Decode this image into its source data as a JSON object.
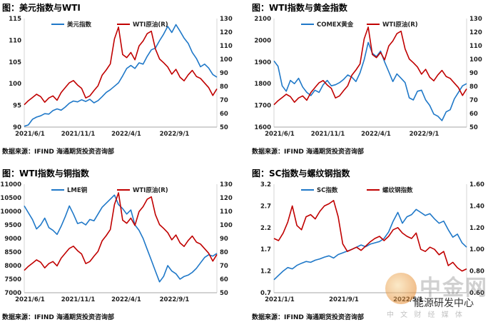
{
  "charts": [
    {
      "title": "图：美元指数与WTI",
      "source": "数据来源：IFIND   海通期货投资咨询部",
      "chart_data": {
        "type": "line",
        "x_ticks": [
          "2021/6/1",
          "2021/11/1",
          "2022/4/1",
          "2022/9/1"
        ],
        "left_axis": {
          "min": 90,
          "max": 115,
          "ticks": [
            90,
            95,
            100,
            105,
            110,
            115
          ]
        },
        "right_axis": {
          "min": 50,
          "max": 130,
          "ticks": [
            50,
            60,
            70,
            80,
            90,
            100,
            110,
            120,
            130
          ]
        },
        "series": [
          {
            "name": "美元指数",
            "axis": "left",
            "color": "#1f78c8",
            "values": [
              90.2,
              90.5,
              91.8,
              92.3,
              92.6,
              93.1,
              93.0,
              93.8,
              94.2,
              93.9,
              94.6,
              95.5,
              96.0,
              95.8,
              96.3,
              95.9,
              96.4,
              95.6,
              96.1,
              97.0,
              98.0,
              98.6,
              99.4,
              100.2,
              101.8,
              103.5,
              104.2,
              103.5,
              104.8,
              104.5,
              106.3,
              107.8,
              108.2,
              109.9,
              111.4,
              113.2,
              111.8,
              113.6,
              112.1,
              110.5,
              109.3,
              107.2,
              105.8,
              103.9,
              104.5,
              103.6,
              102.1,
              101.5
            ]
          },
          {
            "name": "WTI原油(R)",
            "axis": "right",
            "color": "#c00000",
            "values": [
              66.5,
              69.4,
              71.8,
              74.2,
              72.5,
              68.3,
              71.5,
              73.0,
              69.8,
              75.5,
              79.1,
              82.7,
              84.3,
              81.0,
              78.5,
              71.5,
              73.0,
              76.9,
              80.5,
              88.2,
              92.1,
              96.5,
              115.0,
              123.7,
              103.5,
              101.2,
              105.0,
              99.6,
              109.8,
              113.5,
              118.9,
              120.7,
              107.6,
              100.2,
              97.5,
              94.3,
              89.0,
              92.6,
              86.8,
              84.1,
              88.5,
              91.8,
              87.3,
              85.9,
              82.5,
              79.1,
              73.3,
              78.2
            ]
          }
        ]
      }
    },
    {
      "title": "图：WTI指数与黄金指数",
      "source": "数据来源：IFIND   海通期货投资咨询部",
      "chart_data": {
        "type": "line",
        "x_ticks": [
          "2021/6/1",
          "2021/11/1",
          "2022/4/1",
          "2022/9/1"
        ],
        "left_axis": {
          "min": 1600,
          "max": 2100,
          "ticks": [
            1600,
            1700,
            1800,
            1900,
            2000,
            2100
          ]
        },
        "right_axis": {
          "min": 50,
          "max": 130,
          "ticks": [
            50,
            60,
            70,
            80,
            90,
            100,
            110,
            120,
            130
          ]
        },
        "series": [
          {
            "name": "COMEX黄金",
            "axis": "left",
            "color": "#1f78c8",
            "values": [
              1905,
              1880,
              1790,
              1765,
              1815,
              1800,
              1825,
              1785,
              1760,
              1745,
              1770,
              1760,
              1795,
              1815,
              1790,
              1795,
              1805,
              1820,
              1840,
              1830,
              1810,
              1850,
              1910,
              1990,
              1940,
              1925,
              1950,
              1900,
              1855,
              1810,
              1845,
              1825,
              1805,
              1735,
              1725,
              1765,
              1770,
              1725,
              1700,
              1660,
              1650,
              1630,
              1670,
              1680,
              1730,
              1760,
              1790,
              1800
            ]
          },
          {
            "name": "WTI原油(R)",
            "axis": "right",
            "color": "#c00000",
            "values": [
              66.5,
              69.4,
              71.8,
              74.2,
              72.5,
              68.3,
              71.5,
              73.0,
              69.8,
              75.5,
              79.1,
              82.7,
              84.3,
              81.0,
              78.5,
              71.5,
              73.0,
              76.9,
              80.5,
              88.2,
              92.1,
              96.5,
              115.0,
              123.7,
              103.5,
              101.2,
              105.0,
              99.6,
              109.8,
              113.5,
              118.9,
              120.7,
              107.6,
              100.2,
              97.5,
              94.3,
              89.0,
              92.6,
              86.8,
              84.1,
              88.5,
              91.8,
              87.3,
              85.9,
              82.5,
              79.1,
              73.3,
              78.2
            ]
          }
        ]
      }
    },
    {
      "title": "图：WTI指数与铜指数",
      "source": "数据来源：IFIND   海通期货投资咨询部",
      "chart_data": {
        "type": "line",
        "x_ticks": [
          "2021/6/1",
          "2021/11/1",
          "2022/4/1",
          "2022/9/1"
        ],
        "left_axis": {
          "min": 7000,
          "max": 11000,
          "ticks": [
            7000,
            7500,
            8000,
            8500,
            9000,
            9500,
            10000,
            10500,
            11000
          ]
        },
        "right_axis": {
          "min": 50,
          "max": 130,
          "ticks": [
            50,
            60,
            70,
            80,
            90,
            100,
            110,
            120,
            130
          ]
        },
        "series": [
          {
            "name": "LME铜",
            "axis": "left",
            "color": "#1f78c8",
            "values": [
              10200,
              9950,
              9700,
              9350,
              9500,
              9750,
              9400,
              9300,
              9150,
              9450,
              9800,
              10200,
              9900,
              9550,
              9600,
              9500,
              9700,
              9650,
              9900,
              10150,
              10300,
              10450,
              10600,
              10250,
              10100,
              9900,
              10050,
              9500,
              9300,
              9000,
              8600,
              8200,
              7800,
              7400,
              7600,
              8000,
              7800,
              7700,
              7500,
              7600,
              7650,
              7750,
              7900,
              8100,
              8300,
              8400,
              8350,
              8450
            ]
          },
          {
            "name": "WTI原油(R)",
            "axis": "right",
            "color": "#c00000",
            "values": [
              66.5,
              69.4,
              71.8,
              74.2,
              72.5,
              68.3,
              71.5,
              73.0,
              69.8,
              75.5,
              79.1,
              82.7,
              84.3,
              81.0,
              78.5,
              71.5,
              73.0,
              76.9,
              80.5,
              88.2,
              92.1,
              96.5,
              115.0,
              123.7,
              103.5,
              101.2,
              105.0,
              99.6,
              109.8,
              113.5,
              118.9,
              120.7,
              107.6,
              100.2,
              97.5,
              94.3,
              89.0,
              92.6,
              86.8,
              84.1,
              88.5,
              91.8,
              87.3,
              85.9,
              82.5,
              79.1,
              73.3,
              78.2
            ]
          }
        ]
      }
    },
    {
      "title": "图：SC指数与螺纹钢指数",
      "source": "数据来源：IFIND   海通期货投资咨询部",
      "chart_data": {
        "type": "line",
        "x_ticks": [
          "2021/1/1",
          "2021/9/1",
          "2022/5/1"
        ],
        "left_axis": {
          "min": 0.7,
          "max": 3.2,
          "ticks": [
            0.7,
            1.2,
            1.7,
            2.2,
            2.7,
            3.2
          ]
        },
        "right_axis": {
          "min": 0.6,
          "max": 1.6,
          "ticks": [
            0.6,
            0.8,
            1.0,
            1.2,
            1.4,
            1.6
          ]
        },
        "series": [
          {
            "name": "SC指数",
            "axis": "left",
            "color": "#1f78c8",
            "values": [
              1.0,
              1.1,
              1.2,
              1.28,
              1.25,
              1.33,
              1.38,
              1.42,
              1.4,
              1.45,
              1.48,
              1.52,
              1.55,
              1.5,
              1.58,
              1.62,
              1.66,
              1.7,
              1.75,
              1.8,
              1.76,
              1.82,
              1.85,
              1.88,
              1.95,
              2.1,
              2.35,
              2.55,
              2.3,
              2.45,
              2.5,
              2.62,
              2.55,
              2.48,
              2.52,
              2.4,
              2.3,
              2.35,
              2.15,
              1.98,
              2.05,
              1.85,
              1.75
            ]
          },
          {
            "name": "螺纹钢指数",
            "axis": "right",
            "color": "#c00000",
            "values": [
              1.1,
              1.08,
              1.15,
              1.25,
              1.4,
              1.22,
              1.18,
              1.3,
              1.32,
              1.28,
              1.35,
              1.4,
              1.42,
              1.45,
              1.3,
              1.05,
              0.98,
              1.0,
              1.02,
              0.99,
              1.03,
              1.07,
              1.1,
              1.12,
              1.08,
              1.12,
              1.18,
              1.2,
              1.15,
              1.12,
              1.1,
              1.15,
              1.0,
              0.98,
              1.02,
              1.0,
              0.95,
              0.98,
              0.85,
              0.88,
              0.83,
              0.8,
              0.82
            ]
          }
        ]
      }
    }
  ],
  "watermark": {
    "brand": "中金网",
    "tagline": "中 文 财 经 媒 体",
    "overlay": "能源研发中心"
  }
}
